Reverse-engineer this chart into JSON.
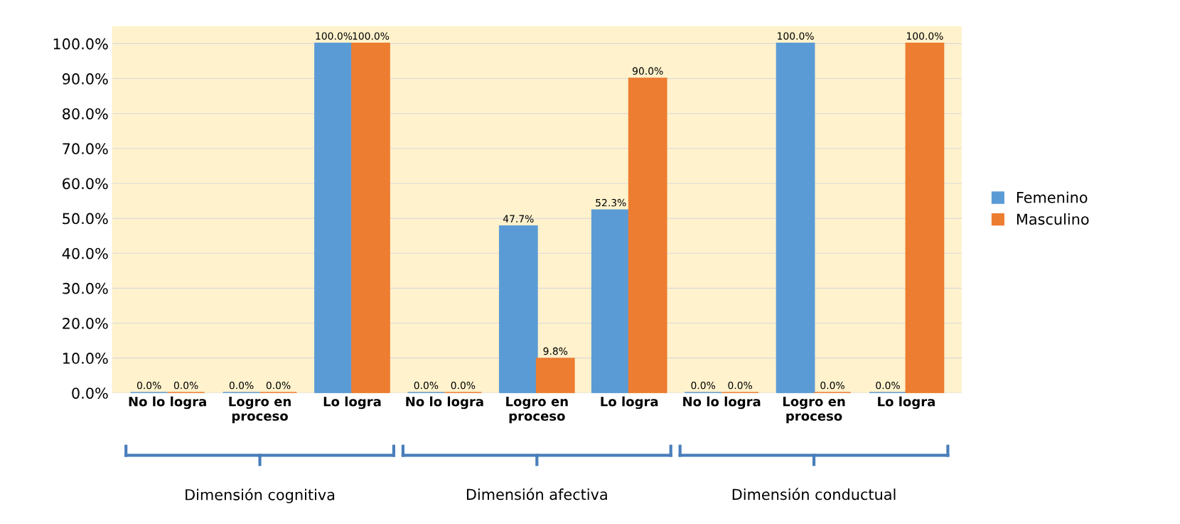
{
  "chart_data": {
    "type": "bar",
    "categories": [
      "No lo logra",
      "Logro en\nproceso",
      "Lo logra",
      "No lo logra",
      "Logro en\nproceso",
      "Lo logra",
      "No lo logra",
      "Logro en\nproceso",
      "Lo logra"
    ],
    "series": [
      {
        "name": "Femenino",
        "color": "#5b9bd5",
        "values": [
          0.0,
          0.0,
          100.0,
          0.0,
          47.7,
          52.3,
          0.0,
          100.0,
          0.0
        ],
        "value_labels": [
          "0.0%",
          "0.0%",
          "100.0%",
          "0.0%",
          "47.7%",
          "52.3%",
          "0.0%",
          "100.0%",
          "0.0%"
        ]
      },
      {
        "name": "Masculino",
        "color": "#ed7d31",
        "values": [
          0.0,
          0.0,
          100.0,
          0.0,
          9.8,
          90.0,
          0.0,
          0.0,
          100.0
        ],
        "value_labels": [
          "0.0%",
          "0.0%",
          "100.0%",
          "0.0%",
          "9.8%",
          "90.0%",
          "0.0%",
          "0.0%",
          "100.0%"
        ]
      }
    ],
    "ylim": [
      0,
      105
    ],
    "yticks": [
      {
        "value": 0,
        "label": "0.0%"
      },
      {
        "value": 10,
        "label": "10.0%"
      },
      {
        "value": 20,
        "label": "20.0%"
      },
      {
        "value": 30,
        "label": "30.0%"
      },
      {
        "value": 40,
        "label": "40.0%"
      },
      {
        "value": 50,
        "label": "50.0%"
      },
      {
        "value": 60,
        "label": "60.0%"
      },
      {
        "value": 70,
        "label": "70.0%"
      },
      {
        "value": 80,
        "label": "80.0%"
      },
      {
        "value": 90,
        "label": "90.0%"
      },
      {
        "value": 100,
        "label": "100.0%"
      }
    ],
    "grid": "y",
    "legend": "right",
    "annotations": [
      "Dimensión cognitiva",
      "Dimensión afectiva",
      "Dimensión conductual"
    ]
  }
}
